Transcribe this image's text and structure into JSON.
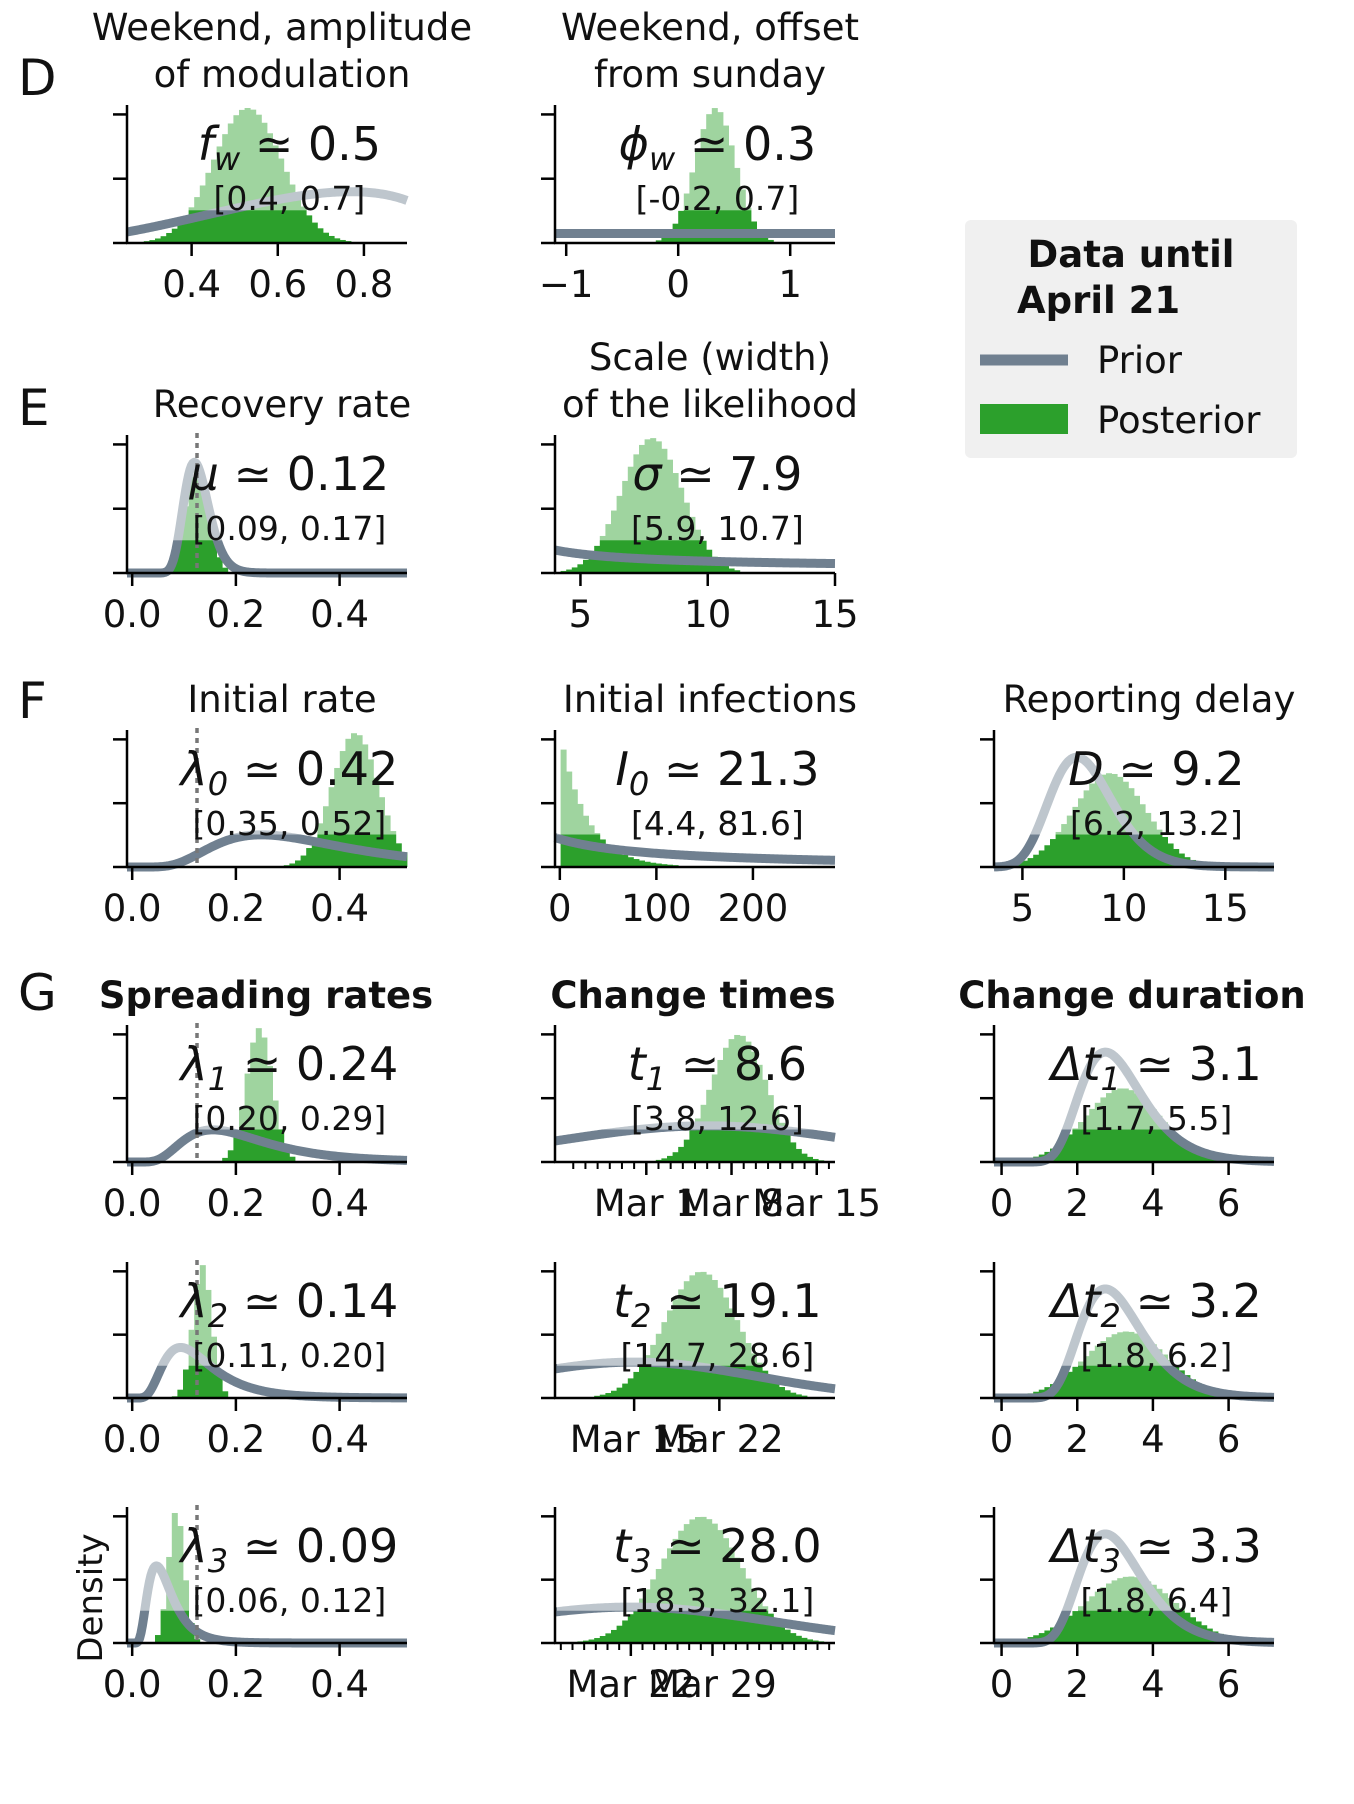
{
  "colors": {
    "prior": "#708090",
    "posterior": "#2ca02c",
    "legend_bg": "#f0f0f0"
  },
  "legend": {
    "title_line1": "Data until",
    "title_line2": "April 21",
    "prior": "Prior",
    "posterior": "Posterior"
  },
  "section_letters": [
    "D",
    "E",
    "F",
    "G"
  ],
  "column_titles": [
    "Spreading rates",
    "Change times",
    "Change duration"
  ],
  "y_axis_label": "Density",
  "chart_data": [
    {
      "type": "histogram+line",
      "id": "fw",
      "title_lines": [
        "Weekend, amplitude",
        "of modulation"
      ],
      "annotation": {
        "symbol": "f",
        "sub": "w",
        "op": "≃",
        "value": "0.5",
        "ci": "[0.4, 0.7]"
      },
      "xlim": [
        0.25,
        0.9
      ],
      "xticks": [
        0.4,
        0.6,
        0.8
      ],
      "xtick_labels": [
        "0.4",
        "0.6",
        "0.8"
      ],
      "ytick_count": 3,
      "prior": {
        "dist": "beta",
        "a": 3,
        "b": 1.6,
        "peak_at_data": 0.78,
        "ymax_frac": 0.38
      },
      "posterior": {
        "mean": 0.53,
        "sd": 0.08,
        "peak_frac": 1.0
      },
      "ref_line": null
    },
    {
      "type": "histogram+line",
      "id": "phiw",
      "title_lines": [
        "Weekend, offset",
        "from sunday"
      ],
      "annotation": {
        "symbol": "ϕ",
        "sub": "w",
        "op": "≃",
        "value": "0.3",
        "ci": "[-0.2, 0.7]"
      },
      "xlim": [
        -1.1,
        1.4
      ],
      "xticks": [
        -1,
        0,
        1
      ],
      "xtick_labels": [
        "−1",
        "0",
        "1"
      ],
      "ytick_count": 3,
      "prior": {
        "dist": "flat",
        "level_frac": 0.07
      },
      "posterior": {
        "mean": 0.33,
        "sd": 0.18,
        "peak_frac": 1.0
      },
      "ref_line": null
    },
    {
      "type": "histogram+line",
      "id": "mu",
      "title_lines": [
        "Recovery rate"
      ],
      "annotation": {
        "symbol": "μ",
        "sub": "",
        "op": "≃",
        "value": "0.12",
        "ci": "[0.09, 0.17]"
      },
      "xlim": [
        -0.01,
        0.53
      ],
      "xticks": [
        0,
        0.2,
        0.4
      ],
      "xtick_labels": [
        "0.0",
        "0.2",
        "0.4"
      ],
      "ytick_count": 3,
      "prior": {
        "dist": "lognormal",
        "median": 0.125,
        "sigma": 0.2
      },
      "posterior": {
        "mean": 0.125,
        "sd": 0.022,
        "peak_frac": 0.8
      },
      "ref_line": 0.125
    },
    {
      "type": "histogram+line",
      "id": "sigma",
      "title_lines": [
        "Scale (width)",
        "of the likelihood"
      ],
      "annotation": {
        "symbol": "σ",
        "sub": "",
        "op": "≃",
        "value": "7.9",
        "ci": "[5.9, 10.7]"
      },
      "xlim": [
        4,
        15
      ],
      "xticks": [
        5,
        10,
        15
      ],
      "xtick_labels": [
        "5",
        "10",
        "15"
      ],
      "ytick_count": 3,
      "prior": {
        "dist": "halfcauchy_tail",
        "start_frac": 0.17,
        "end_frac": 0.07
      },
      "posterior": {
        "mean": 7.8,
        "sd": 1.2,
        "peak_frac": 1.0
      },
      "ref_line": null
    },
    {
      "type": "histogram+line",
      "id": "lambda0",
      "title_lines": [
        "Initial rate"
      ],
      "annotation": {
        "symbol": "λ",
        "sub": "0",
        "op": "≃",
        "value": "0.42",
        "ci": "[0.35, 0.52]"
      },
      "xlim": [
        -0.01,
        0.53
      ],
      "xticks": [
        0,
        0.2,
        0.4
      ],
      "xtick_labels": [
        "0.0",
        "0.2",
        "0.4"
      ],
      "ytick_count": 3,
      "prior": {
        "dist": "lognormal",
        "median": 0.32,
        "sigma": 0.5,
        "ymax_frac": 0.24
      },
      "posterior": {
        "mean": 0.43,
        "sd": 0.045,
        "peak_frac": 1.0
      },
      "ref_line": 0.125
    },
    {
      "type": "histogram+line",
      "id": "I0",
      "title_lines": [
        "Initial infections"
      ],
      "annotation": {
        "symbol": "I",
        "sub": "0",
        "op": "≃",
        "value": "21.3",
        "ci": "[4.4, 81.6]"
      },
      "xlim": [
        -5,
        285
      ],
      "xticks": [
        0,
        100,
        200
      ],
      "xtick_labels": [
        "0",
        "100",
        "200"
      ],
      "ytick_count": 3,
      "prior": {
        "dist": "halfcauchy_tail",
        "start_frac": 0.22,
        "end_frac": 0.05
      },
      "posterior": {
        "dist": "exponential",
        "scale": 28,
        "peak_frac": 1.0
      },
      "ref_line": null
    },
    {
      "type": "histogram+line",
      "id": "D",
      "title_lines": [
        "Reporting delay"
      ],
      "annotation": {
        "symbol": "D",
        "sub": "",
        "op": "≃",
        "value": "9.2",
        "ci": "[6.2, 13.2]"
      },
      "xlim": [
        3.6,
        17.4
      ],
      "xticks": [
        5,
        10,
        15
      ],
      "xtick_labels": [
        "5",
        "10",
        "15"
      ],
      "ytick_count": 3,
      "prior": {
        "dist": "lognormal",
        "median": 8,
        "sigma": 0.2
      },
      "posterior": {
        "mean": 9.3,
        "sd": 1.8,
        "peak_frac": 0.7
      },
      "ref_line": null
    },
    {
      "type": "histogram+line",
      "id": "lambda1",
      "title_lines": [],
      "annotation": {
        "symbol": "λ",
        "sub": "1",
        "op": "≃",
        "value": "0.24",
        "ci": "[0.20, 0.29]"
      },
      "xlim": [
        -0.01,
        0.53
      ],
      "xticks": [
        0,
        0.2,
        0.4
      ],
      "xtick_labels": [
        "0.0",
        "0.2",
        "0.4"
      ],
      "ytick_count": 3,
      "prior": {
        "dist": "lognormal",
        "median": 0.2,
        "sigma": 0.5,
        "ymax_frac": 0.24
      },
      "posterior": {
        "mean": 0.245,
        "sd": 0.025,
        "peak_frac": 1.0
      },
      "ref_line": 0.125
    },
    {
      "type": "histogram+line",
      "id": "t1",
      "title_lines": [],
      "annotation": {
        "symbol": "t",
        "sub": "1",
        "op": "≃",
        "value": "8.6",
        "ci": "[3.8, 12.6]"
      },
      "xlim": [
        -6.5,
        16.5
      ],
      "xticks": [
        1,
        8,
        15
      ],
      "xtick_labels": [
        "Mar 1",
        "Mar 8",
        "Mar 15"
      ],
      "minor_range": [
        -5,
        16
      ],
      "ytick_count": 3,
      "prior": {
        "dist": "normal",
        "mean": 6,
        "sd": 12,
        "ymax_frac": 0.27
      },
      "posterior": {
        "mean": 8.6,
        "sd": 2.3,
        "peak_frac": 0.95
      },
      "ref_line": null
    },
    {
      "type": "histogram+line",
      "id": "dt1",
      "title_lines": [],
      "annotation": {
        "symbol": "Δt",
        "sub": "1",
        "op": "≃",
        "value": "3.1",
        "ci": "[1.7, 5.5]"
      },
      "xlim": [
        -0.2,
        7.2
      ],
      "xticks": [
        0,
        2,
        4,
        6
      ],
      "xtick_labels": [
        "0",
        "2",
        "4",
        "6"
      ],
      "ytick_count": 3,
      "prior": {
        "dist": "lognormal",
        "median": 3,
        "sigma": 0.3
      },
      "posterior": {
        "mean": 3.2,
        "sd": 1.0,
        "peak_frac": 0.55
      },
      "ref_line": null
    },
    {
      "type": "histogram+line",
      "id": "lambda2",
      "title_lines": [],
      "annotation": {
        "symbol": "λ",
        "sub": "2",
        "op": "≃",
        "value": "0.14",
        "ci": "[0.11, 0.20]"
      },
      "xlim": [
        -0.01,
        0.53
      ],
      "xticks": [
        0,
        0.2,
        0.4
      ],
      "xtick_labels": [
        "0.0",
        "0.2",
        "0.4"
      ],
      "ytick_count": 3,
      "prior": {
        "dist": "lognormal",
        "median": 0.12,
        "sigma": 0.5,
        "ymax_frac": 0.38
      },
      "posterior": {
        "mean": 0.135,
        "sd": 0.018,
        "peak_frac": 1.0
      },
      "ref_line": 0.125
    },
    {
      "type": "histogram+line",
      "id": "t2",
      "title_lines": [],
      "annotation": {
        "symbol": "t",
        "sub": "2",
        "op": "≃",
        "value": "19.1",
        "ci": "[14.7, 28.6]"
      },
      "xlim": [
        8.5,
        31.5
      ],
      "xticks": [
        15,
        22
      ],
      "xtick_labels": [
        "Mar 15",
        "Mar 22"
      ],
      "minor_range": null,
      "ytick_count": 3,
      "prior": {
        "dist": "normal",
        "mean": 15,
        "sd": 10,
        "ymax_frac": 0.27
      },
      "posterior": {
        "mean": 20.5,
        "sd": 3.0,
        "peak_frac": 0.95
      },
      "ref_line": null
    },
    {
      "type": "histogram+line",
      "id": "dt2",
      "title_lines": [],
      "annotation": {
        "symbol": "Δt",
        "sub": "2",
        "op": "≃",
        "value": "3.2",
        "ci": "[1.8, 6.2]"
      },
      "xlim": [
        -0.2,
        7.2
      ],
      "xticks": [
        0,
        2,
        4,
        6
      ],
      "xtick_labels": [
        "0",
        "2",
        "4",
        "6"
      ],
      "ytick_count": 3,
      "prior": {
        "dist": "lognormal",
        "median": 3,
        "sigma": 0.3
      },
      "posterior": {
        "mean": 3.3,
        "sd": 1.1,
        "peak_frac": 0.5
      },
      "ref_line": null
    },
    {
      "type": "histogram+line",
      "id": "lambda3",
      "title_lines": [],
      "annotation": {
        "symbol": "λ",
        "sub": "3",
        "op": "≃",
        "value": "0.09",
        "ci": "[0.06, 0.12]"
      },
      "xlim": [
        -0.01,
        0.53
      ],
      "xticks": [
        0,
        0.2,
        0.4
      ],
      "xtick_labels": [
        "0.0",
        "0.2",
        "0.4"
      ],
      "ytick_count": 3,
      "prior": {
        "dist": "lognormal",
        "median": 0.06,
        "sigma": 0.5,
        "ymax_frac": 0.58
      },
      "posterior": {
        "mean": 0.085,
        "sd": 0.015,
        "peak_frac": 1.0
      },
      "ref_line": 0.125,
      "show_ylabel": true
    },
    {
      "type": "histogram+line",
      "id": "t3",
      "title_lines": [],
      "annotation": {
        "symbol": "t",
        "sub": "3",
        "op": "≃",
        "value": "28.0",
        "ci": "[18.3, 32.1]"
      },
      "xlim": [
        15.5,
        39.5
      ],
      "xticks": [
        22,
        29
      ],
      "xtick_labels": [
        "Mar 22",
        "Mar 29"
      ],
      "minor_range": [
        16,
        39
      ],
      "ytick_count": 3,
      "prior": {
        "dist": "normal",
        "mean": 22,
        "sd": 12,
        "ymax_frac": 0.27
      },
      "posterior": {
        "mean": 28,
        "sd": 3.5,
        "peak_frac": 0.95
      },
      "ref_line": null
    },
    {
      "type": "histogram+line",
      "id": "dt3",
      "title_lines": [],
      "annotation": {
        "symbol": "Δt",
        "sub": "3",
        "op": "≃",
        "value": "3.3",
        "ci": "[1.8, 6.4]"
      },
      "xlim": [
        -0.2,
        7.2
      ],
      "xticks": [
        0,
        2,
        4,
        6
      ],
      "xtick_labels": [
        "0",
        "2",
        "4",
        "6"
      ],
      "ytick_count": 3,
      "prior": {
        "dist": "lognormal",
        "median": 3,
        "sigma": 0.3
      },
      "posterior": {
        "mean": 3.4,
        "sd": 1.2,
        "peak_frac": 0.5
      },
      "ref_line": null
    }
  ]
}
